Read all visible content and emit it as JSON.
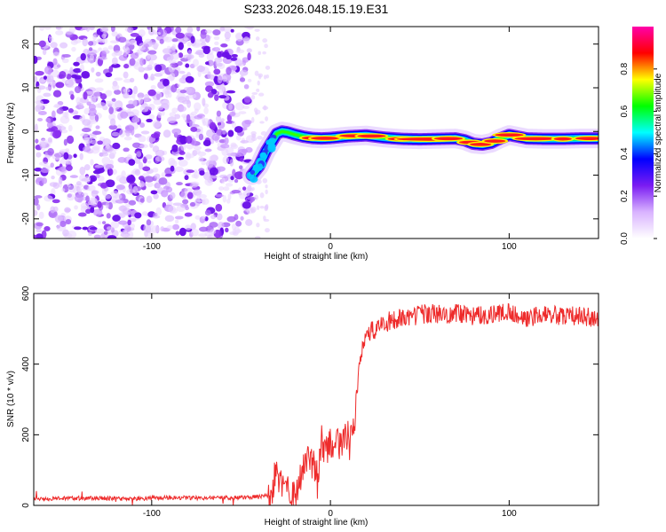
{
  "figure": {
    "title": "S233.2026.048.15.19.E31"
  },
  "chart_data": [
    {
      "type": "heatmap",
      "xlabel": "Height of straight line (km)",
      "ylabel": "Frequency (Hz)",
      "xlim": [
        -166,
        150
      ],
      "ylim": [
        -24.5,
        24
      ],
      "xticks": [
        -100,
        0,
        100
      ],
      "yticks": [
        -20,
        -10,
        0,
        10,
        20
      ],
      "grid": false,
      "noise_region_x": [
        -166,
        -44
      ],
      "sparse_region_x": [
        -44,
        -35
      ],
      "ridge": {
        "x": [
          -44,
          -40,
          -36,
          -33,
          -30,
          -27,
          -24,
          -20,
          -15,
          -10,
          -5,
          0,
          10,
          20,
          30,
          40,
          50,
          60,
          70,
          75,
          80,
          85,
          90,
          95,
          100,
          110,
          120,
          130,
          140,
          150
        ],
        "y": [
          -10,
          -8,
          -4.5,
          -2.5,
          -0.5,
          0,
          -0.2,
          -0.7,
          -1.2,
          -1.5,
          -1.6,
          -1.5,
          -1.1,
          -0.9,
          -1.4,
          -1.7,
          -1.8,
          -1.7,
          -1.6,
          -2.0,
          -2.8,
          -3.0,
          -2.6,
          -1.6,
          -0.8,
          -1.6,
          -1.7,
          -1.7,
          -1.6,
          -1.6
        ]
      },
      "colorbar": {
        "label": "Normalized spectral amplitude",
        "range": [
          0,
          1
        ],
        "ticks": [
          0.0,
          0.2,
          0.4,
          0.6,
          0.8
        ],
        "colors": [
          "#ffffff",
          "#d9b3ff",
          "#7a1cf2",
          "#0000ff",
          "#00ffff",
          "#00ff00",
          "#ffff00",
          "#ff0000",
          "#ff00aa"
        ]
      }
    },
    {
      "type": "line",
      "xlabel": "Height of straight line (km)",
      "ylabel": "SNR (10 * v/v)",
      "xlim": [
        -166,
        150
      ],
      "ylim": [
        0,
        600
      ],
      "xticks": [
        -100,
        0,
        100
      ],
      "yticks": [
        0,
        200,
        400,
        600
      ],
      "grid": false,
      "series": [
        {
          "color": "#ee2b2b",
          "x": [
            -166,
            -150,
            -130,
            -110,
            -90,
            -70,
            -50,
            -40,
            -33,
            -31,
            -29,
            -25,
            -20,
            -16,
            -14,
            -10,
            -7,
            -5,
            -3,
            -1,
            2,
            5,
            8,
            11,
            13,
            14,
            15,
            16,
            17,
            18,
            20,
            22,
            25,
            28,
            32,
            36,
            40,
            45,
            50,
            55,
            60,
            70,
            80,
            90,
            100,
            110,
            120,
            130,
            140,
            150
          ],
          "y": [
            18,
            20,
            21,
            19,
            22,
            21,
            22,
            24,
            30,
            95,
            70,
            45,
            20,
            95,
            140,
            120,
            75,
            190,
            150,
            170,
            180,
            175,
            190,
            200,
            220,
            270,
            320,
            380,
            420,
            460,
            480,
            490,
            500,
            510,
            520,
            525,
            530,
            535,
            540,
            545,
            540,
            545,
            535,
            540,
            545,
            530,
            540,
            535,
            538,
            530
          ]
        }
      ]
    }
  ]
}
